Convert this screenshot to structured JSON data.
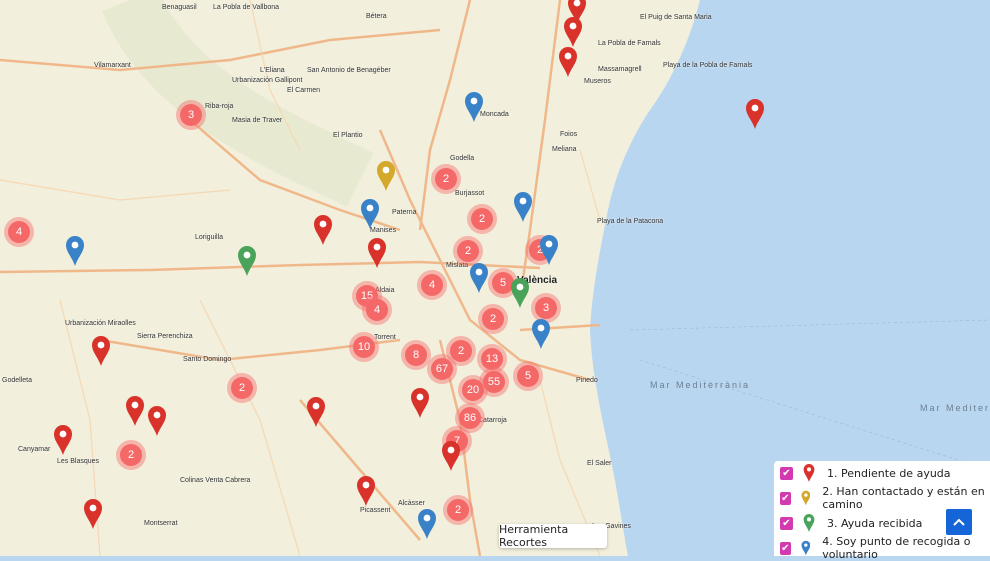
{
  "colors": {
    "land": "#f2efdc",
    "sea": "#b9d6f0",
    "road": "#f0b88a",
    "cluster": "#f56868",
    "categories": [
      "#d9322a",
      "#d4a82a",
      "#4aa35a",
      "#3a82c8"
    ]
  },
  "map_labels": {
    "benaguasil": "Benaguasil",
    "pobla_vallbona": "La Pobla de Vallbona",
    "betera": "Bétera",
    "vilamarxant": "Vilamarxant",
    "leliana": "L'Eliana",
    "san_antonio": "San Antonio de Benagéber",
    "gallipont": "Urbanización Gallipont",
    "el_carmen": "El Carmen",
    "riba_roja": "Riba-roja",
    "masia_traver": "Masia de Traver",
    "el_plantio": "El Plantio",
    "moncada": "Moncada",
    "foios": "Foios",
    "meliana": "Meliana",
    "godella": "Godella",
    "burjassot": "Burjassot",
    "paterna": "Paterna",
    "manises": "Manises",
    "loriguilla": "Loriguilla",
    "mislata": "Mislata",
    "valencia": "València",
    "aldaia": "Aldaia",
    "torrent": "Torrent",
    "catarroja": "Catarroja",
    "santo_domingo": "Santo Domingo",
    "sierra_perenchiza": "Sierra Perenchiza",
    "miraolles": "Urbanización Miraolles",
    "godelleta": "Godelleta",
    "canyamar": "Canyamar",
    "les_blasques": "Les Blasques",
    "colinas": "Colinas Venta Cabrera",
    "montserrat": "Montserrat",
    "picassent": "Picassent",
    "alcasser": "Alcàsser",
    "el_saler": "El Saler",
    "pinedo": "Pinedo",
    "massamagrell": "Massamagrell",
    "museros": "Museros",
    "pobla_farnals": "La Pobla de Farnals",
    "playa_farnals": "Playa de la Pobla de Farnals",
    "el_puig": "El Puig de Santa Maria",
    "patacona": "Playa de la Patacona",
    "les_gavines": "Les Gavines",
    "sea1": "Mar Mediterrània",
    "sea2": "Mar Mediterrà"
  },
  "clusters": [
    "3",
    "4",
    "2",
    "2",
    "2",
    "2",
    "4",
    "5",
    "15",
    "4",
    "3",
    "2",
    "10",
    "8",
    "2",
    "13",
    "67",
    "5",
    "55",
    "20",
    "86",
    "7",
    "2",
    "2",
    "2"
  ],
  "legend": {
    "items": [
      {
        "label": "1. Pendiente de ayuda",
        "checked": true
      },
      {
        "label": "2. Han contactado y están en camino",
        "checked": true
      },
      {
        "label": "3. Ayuda recibida",
        "checked": true
      },
      {
        "label": "4. Soy punto de recogida o voluntario",
        "checked": true
      }
    ]
  },
  "scroll_top_icon": "chevron-up-icon",
  "tool_button": "Herramienta Recortes"
}
